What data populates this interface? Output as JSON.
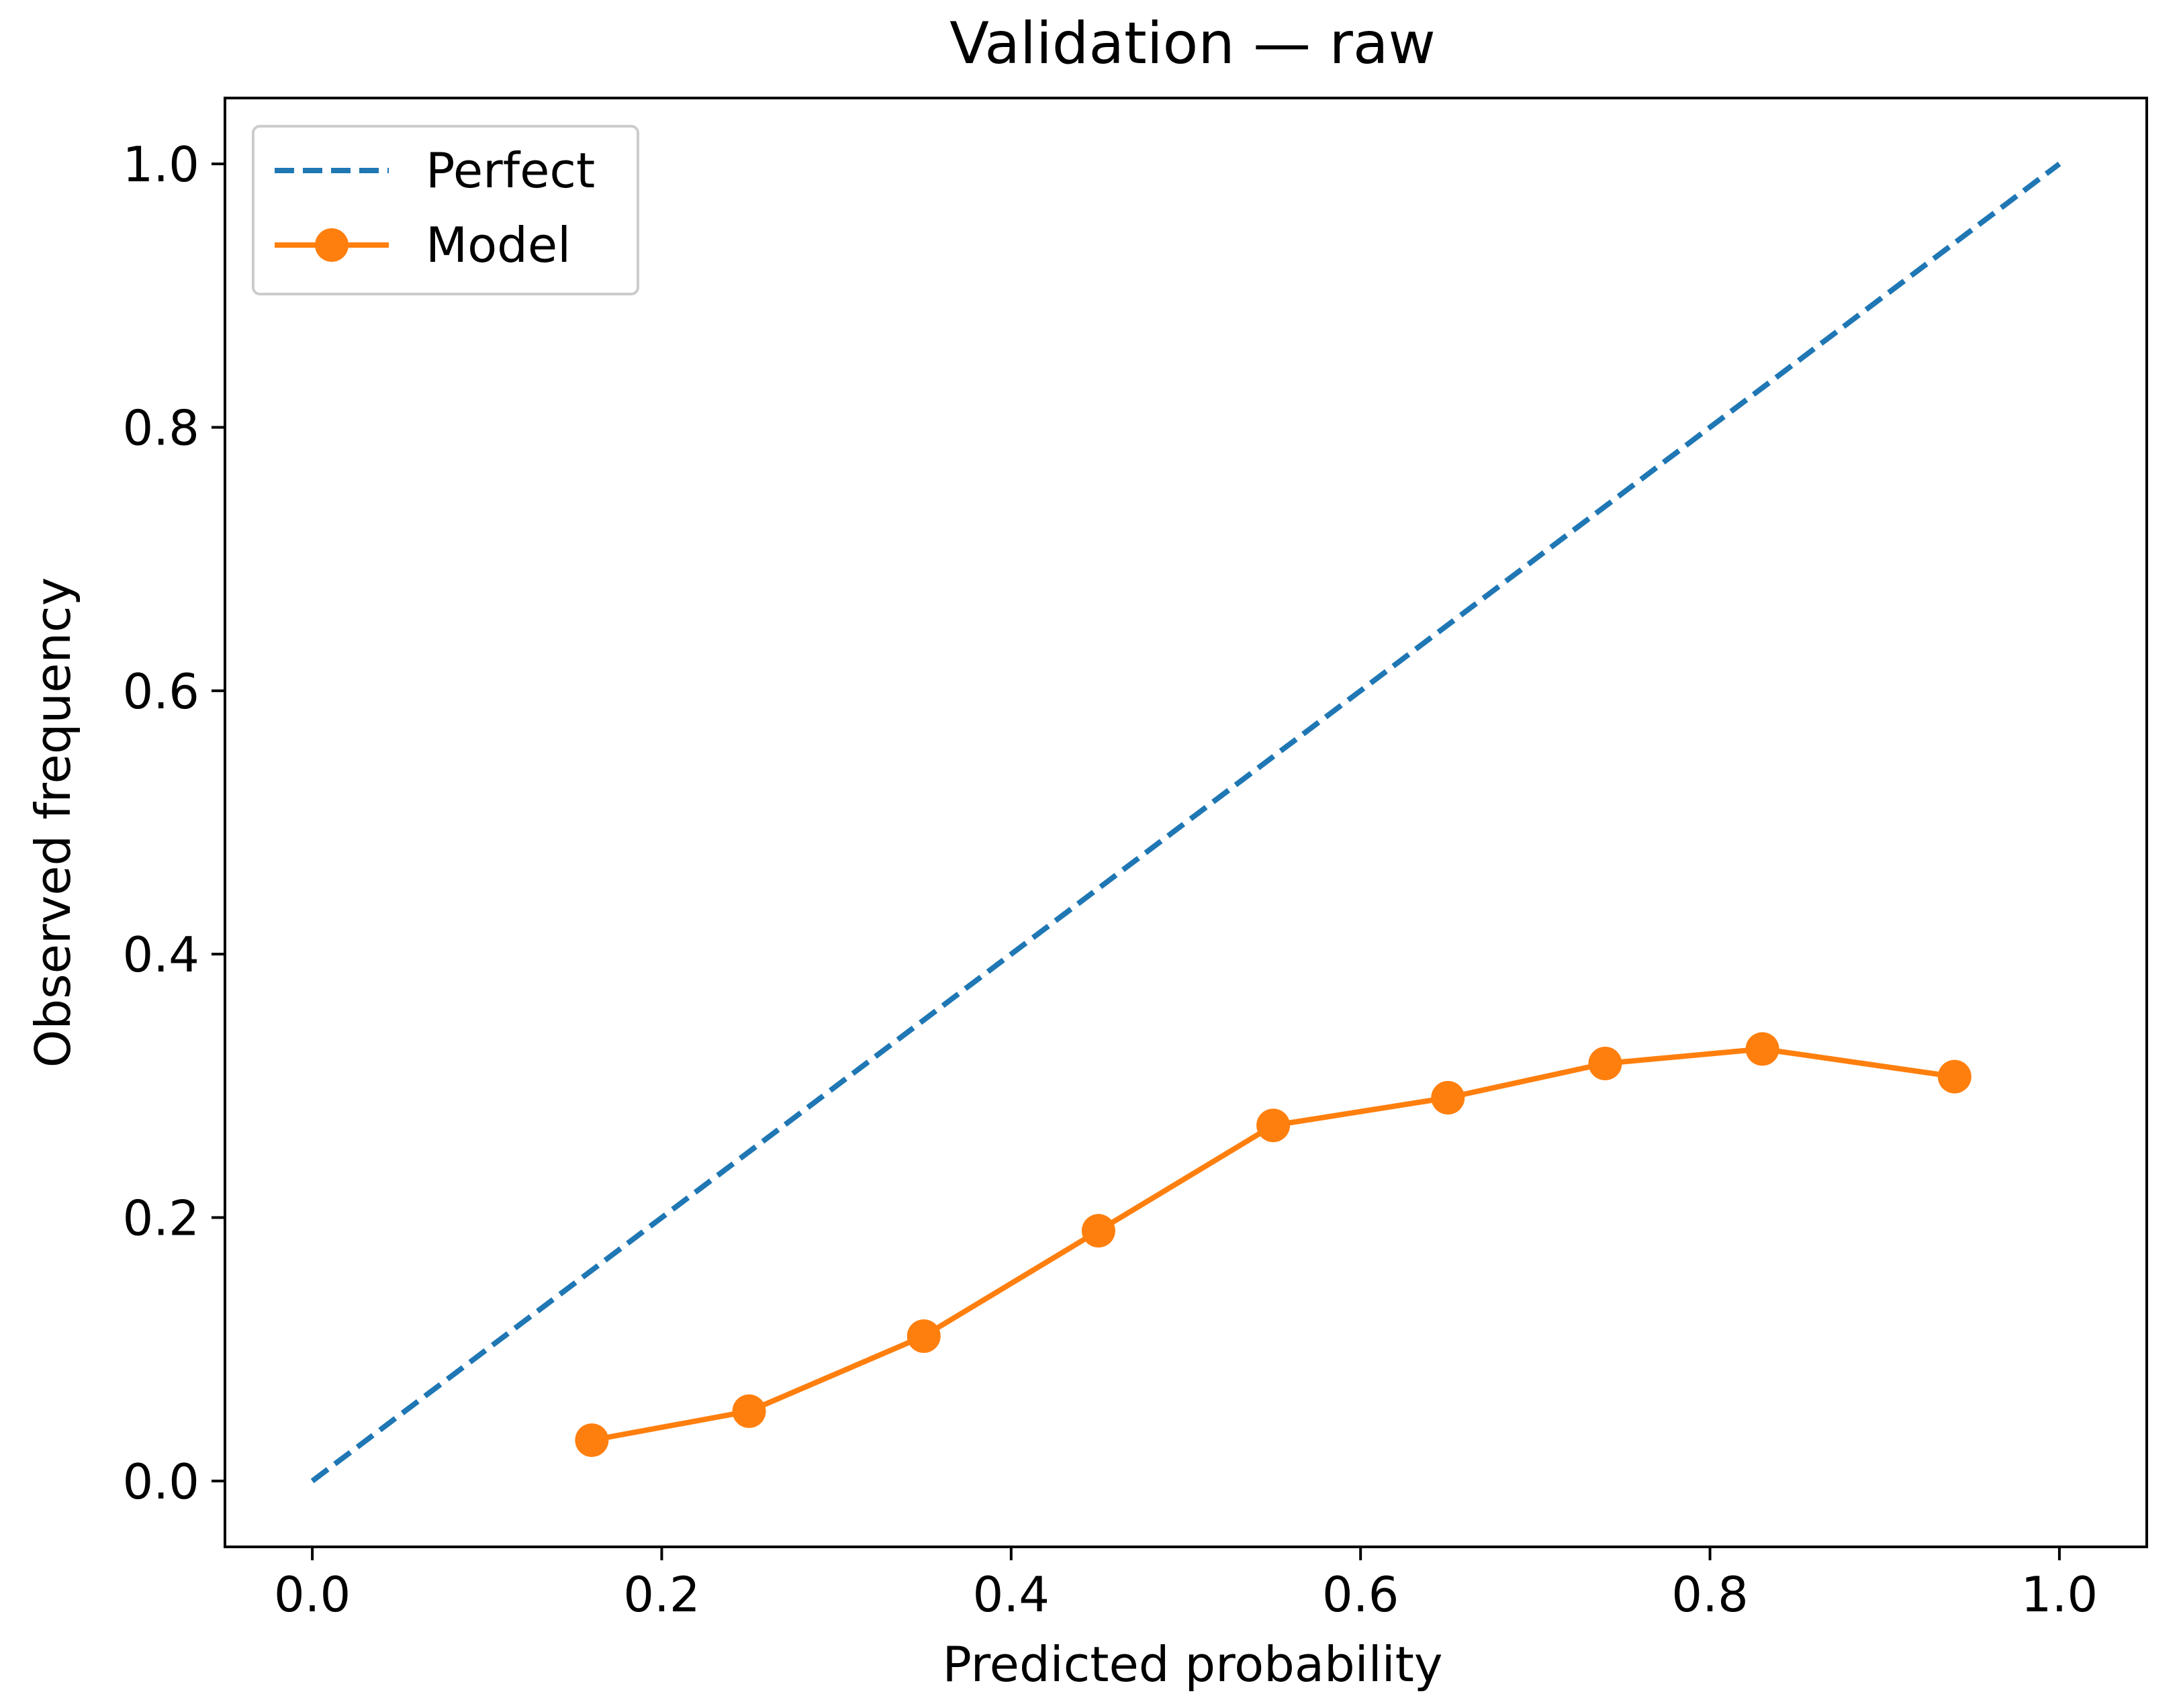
{
  "chart_data": {
    "type": "line",
    "title": "Validation — raw",
    "xlabel": "Predicted probability",
    "ylabel": "Observed frequency",
    "xlim": [
      -0.05,
      1.05
    ],
    "ylim": [
      -0.05,
      1.05
    ],
    "xticks": [
      0.0,
      0.2,
      0.4,
      0.6,
      0.8,
      1.0
    ],
    "xtick_labels": [
      "0.0",
      "0.2",
      "0.4",
      "0.6",
      "0.8",
      "1.0"
    ],
    "yticks": [
      0.0,
      0.2,
      0.4,
      0.6,
      0.8,
      1.0
    ],
    "ytick_labels": [
      "0.0",
      "0.2",
      "0.4",
      "0.6",
      "0.8",
      "1.0"
    ],
    "grid": false,
    "legend_position": "top-left",
    "series": [
      {
        "name": "Perfect",
        "style": "dashed",
        "marker": "none",
        "color": "#1f77b4",
        "x": [
          0.0,
          1.0
        ],
        "y": [
          0.0,
          1.0
        ]
      },
      {
        "name": "Model",
        "style": "solid",
        "marker": "circle",
        "color": "#ff7f0e",
        "x": [
          0.16,
          0.25,
          0.35,
          0.45,
          0.55,
          0.65,
          0.74,
          0.83,
          0.94
        ],
        "y": [
          0.031,
          0.053,
          0.11,
          0.19,
          0.27,
          0.291,
          0.317,
          0.328,
          0.307
        ]
      }
    ]
  }
}
